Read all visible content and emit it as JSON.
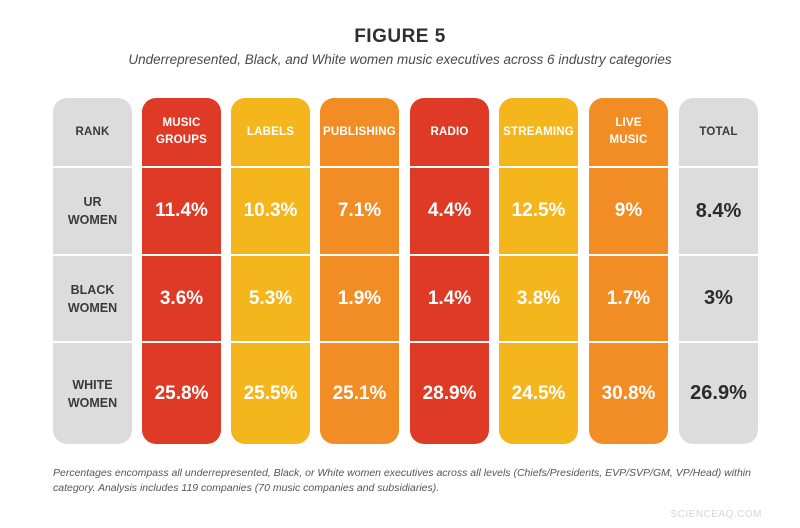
{
  "title": "FIGURE 5",
  "subtitle": "Underrepresented, Black, and White women music executives across 6 industry categories",
  "footnote": "Percentages encompass all underrepresented, Black, or White women executives across all levels (Chiefs/Presidents, EVP/SVP/GM, VP/Head) within category. Analysis includes 119 companies (70 music companies and subsidiaries).",
  "watermark": "SCIENCEAQ.COM",
  "colors": {
    "red": "#de3a26",
    "yellow": "#f5b51c",
    "orange": "#f28c25",
    "gray": "#dcdcdc"
  },
  "chart_data": {
    "type": "table",
    "title": "FIGURE 5",
    "subtitle": "Underrepresented, Black, and White women music executives across 6 industry categories",
    "rank_header": "RANK",
    "rows": [
      {
        "label_lines": [
          "UR",
          "WOMEN"
        ]
      },
      {
        "label_lines": [
          "BLACK",
          "WOMEN"
        ]
      },
      {
        "label_lines": [
          "WHITE",
          "WOMEN"
        ]
      }
    ],
    "categories": [
      {
        "header_lines": [
          "MUSIC",
          "GROUPS"
        ],
        "color": "#de3a26",
        "values": [
          "11.4%",
          "3.6%",
          "25.8%"
        ]
      },
      {
        "header_lines": [
          "LABELS"
        ],
        "color": "#f5b51c",
        "values": [
          "10.3%",
          "5.3%",
          "25.5%"
        ]
      },
      {
        "header_lines": [
          "PUBLISHING"
        ],
        "color": "#f28c25",
        "values": [
          "7.1%",
          "1.9%",
          "25.1%"
        ]
      },
      {
        "header_lines": [
          "RADIO"
        ],
        "color": "#de3a26",
        "values": [
          "4.4%",
          "1.4%",
          "28.9%"
        ]
      },
      {
        "header_lines": [
          "STREAMING"
        ],
        "color": "#f5b51c",
        "values": [
          "12.5%",
          "3.8%",
          "24.5%"
        ]
      },
      {
        "header_lines": [
          "LIVE",
          "MUSIC"
        ],
        "color": "#f28c25",
        "values": [
          "9%",
          "1.7%",
          "30.8%"
        ]
      }
    ],
    "total": {
      "header": "TOTAL",
      "color": "#dcdcdc",
      "values": [
        "8.4%",
        "3%",
        "26.9%"
      ]
    }
  }
}
